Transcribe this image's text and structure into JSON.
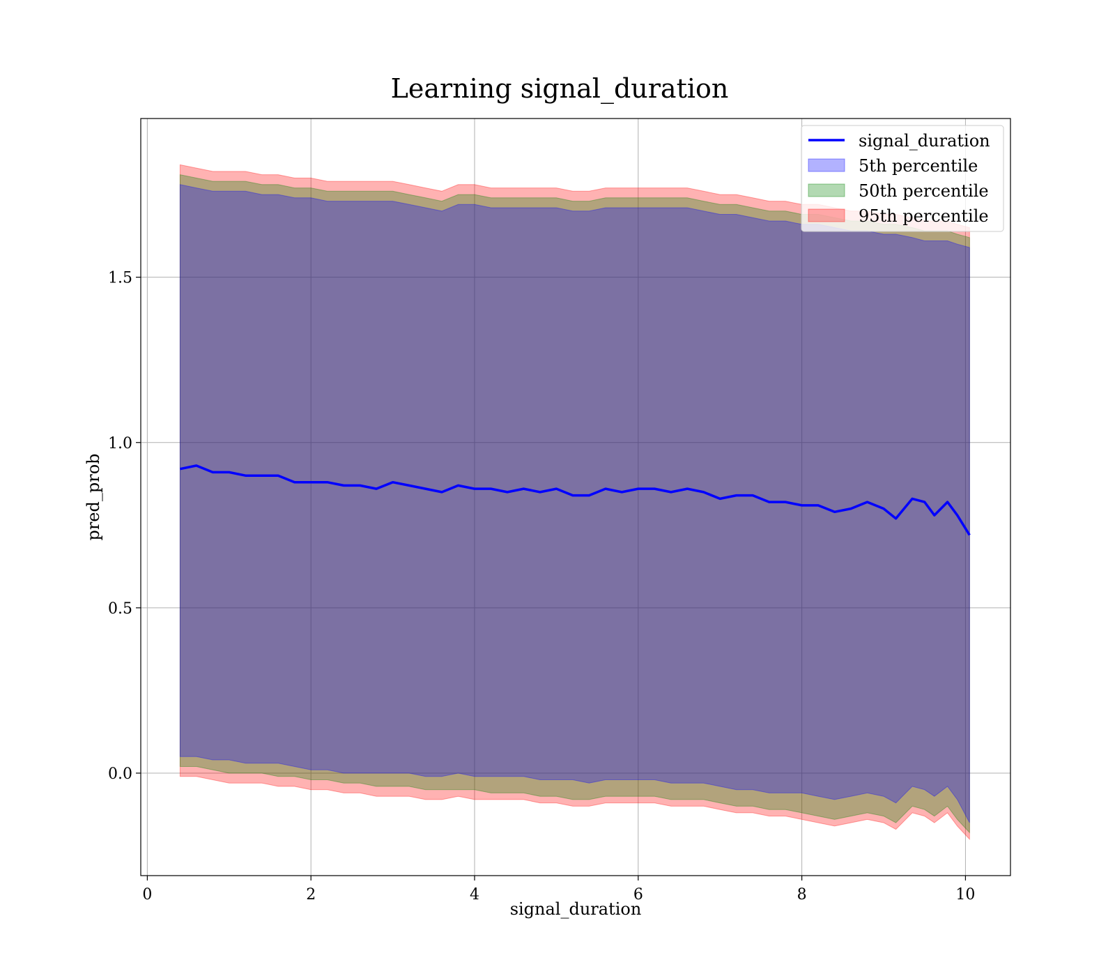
{
  "chart_data": {
    "type": "area",
    "title": "Learning signal_duration",
    "xlabel": "signal_duration",
    "ylabel": "pred_prob",
    "xlim": [
      -0.08,
      10.55
    ],
    "ylim": [
      -0.31,
      1.98
    ],
    "xticks": [
      0,
      2,
      4,
      6,
      8,
      10
    ],
    "xtick_labels": [
      "0",
      "2",
      "4",
      "6",
      "8",
      "10"
    ],
    "yticks": [
      0.0,
      0.5,
      1.0,
      1.5
    ],
    "ytick_labels": [
      "0.0",
      "0.5",
      "1.0",
      "1.5"
    ],
    "grid": true,
    "legend_position": "top-right",
    "colors": {
      "line": "#0000ff",
      "band_5th": "#0000ff",
      "band_50th": "#008000",
      "band_95th": "#ff0000"
    },
    "x": [
      0.4,
      0.6,
      0.8,
      1.0,
      1.2,
      1.4,
      1.6,
      1.8,
      2.0,
      2.2,
      2.4,
      2.6,
      2.8,
      3.0,
      3.2,
      3.4,
      3.6,
      3.8,
      4.0,
      4.2,
      4.4,
      4.6,
      4.8,
      5.0,
      5.2,
      5.4,
      5.6,
      5.8,
      6.0,
      6.2,
      6.4,
      6.6,
      6.8,
      7.0,
      7.2,
      7.4,
      7.6,
      7.8,
      8.0,
      8.2,
      8.4,
      8.6,
      8.8,
      9.0,
      9.15,
      9.35,
      9.5,
      9.62,
      9.78,
      9.9,
      10.05
    ],
    "series": [
      {
        "name": "signal_duration",
        "kind": "line",
        "values": [
          0.92,
          0.93,
          0.91,
          0.91,
          0.9,
          0.9,
          0.9,
          0.88,
          0.88,
          0.88,
          0.87,
          0.87,
          0.86,
          0.88,
          0.87,
          0.86,
          0.85,
          0.87,
          0.86,
          0.86,
          0.85,
          0.86,
          0.85,
          0.86,
          0.84,
          0.84,
          0.86,
          0.85,
          0.86,
          0.86,
          0.85,
          0.86,
          0.85,
          0.83,
          0.84,
          0.84,
          0.82,
          0.82,
          0.81,
          0.81,
          0.79,
          0.8,
          0.82,
          0.8,
          0.77,
          0.83,
          0.82,
          0.78,
          0.82,
          0.78,
          0.72
        ]
      },
      {
        "name": "5th percentile",
        "kind": "band",
        "lower": [
          0.05,
          0.05,
          0.04,
          0.04,
          0.03,
          0.03,
          0.03,
          0.02,
          0.01,
          0.01,
          0.0,
          0.0,
          0.0,
          0.0,
          0.0,
          -0.01,
          -0.01,
          0.0,
          -0.01,
          -0.01,
          -0.01,
          -0.01,
          -0.02,
          -0.02,
          -0.02,
          -0.03,
          -0.02,
          -0.02,
          -0.02,
          -0.02,
          -0.03,
          -0.03,
          -0.03,
          -0.04,
          -0.05,
          -0.05,
          -0.06,
          -0.06,
          -0.06,
          -0.07,
          -0.08,
          -0.07,
          -0.06,
          -0.07,
          -0.09,
          -0.04,
          -0.05,
          -0.07,
          -0.04,
          -0.08,
          -0.15
        ],
        "upper": [
          1.78,
          1.77,
          1.76,
          1.76,
          1.76,
          1.75,
          1.75,
          1.74,
          1.74,
          1.73,
          1.73,
          1.73,
          1.73,
          1.73,
          1.72,
          1.71,
          1.7,
          1.72,
          1.72,
          1.71,
          1.71,
          1.71,
          1.71,
          1.71,
          1.7,
          1.7,
          1.71,
          1.71,
          1.71,
          1.71,
          1.71,
          1.71,
          1.7,
          1.69,
          1.69,
          1.68,
          1.67,
          1.67,
          1.66,
          1.66,
          1.65,
          1.64,
          1.64,
          1.63,
          1.63,
          1.62,
          1.61,
          1.61,
          1.61,
          1.6,
          1.59
        ]
      },
      {
        "name": "50th percentile",
        "kind": "band",
        "lower": [
          0.02,
          0.02,
          0.01,
          0.0,
          0.0,
          0.0,
          -0.01,
          -0.01,
          -0.02,
          -0.02,
          -0.03,
          -0.03,
          -0.04,
          -0.04,
          -0.04,
          -0.05,
          -0.05,
          -0.05,
          -0.05,
          -0.06,
          -0.06,
          -0.06,
          -0.07,
          -0.07,
          -0.08,
          -0.08,
          -0.07,
          -0.07,
          -0.07,
          -0.07,
          -0.08,
          -0.08,
          -0.08,
          -0.09,
          -0.1,
          -0.1,
          -0.11,
          -0.11,
          -0.12,
          -0.13,
          -0.14,
          -0.13,
          -0.12,
          -0.13,
          -0.15,
          -0.1,
          -0.11,
          -0.13,
          -0.1,
          -0.14,
          -0.18
        ],
        "upper": [
          1.81,
          1.8,
          1.79,
          1.79,
          1.79,
          1.78,
          1.78,
          1.77,
          1.77,
          1.76,
          1.76,
          1.76,
          1.76,
          1.76,
          1.75,
          1.74,
          1.73,
          1.75,
          1.75,
          1.74,
          1.74,
          1.74,
          1.74,
          1.74,
          1.73,
          1.73,
          1.74,
          1.74,
          1.74,
          1.74,
          1.74,
          1.74,
          1.73,
          1.72,
          1.72,
          1.71,
          1.7,
          1.7,
          1.69,
          1.69,
          1.68,
          1.67,
          1.67,
          1.66,
          1.66,
          1.65,
          1.64,
          1.64,
          1.64,
          1.63,
          1.62
        ]
      },
      {
        "name": "95th percentile",
        "kind": "band",
        "lower": [
          -0.01,
          -0.01,
          -0.02,
          -0.03,
          -0.03,
          -0.03,
          -0.04,
          -0.04,
          -0.05,
          -0.05,
          -0.06,
          -0.06,
          -0.07,
          -0.07,
          -0.07,
          -0.08,
          -0.08,
          -0.07,
          -0.08,
          -0.08,
          -0.08,
          -0.08,
          -0.09,
          -0.09,
          -0.1,
          -0.1,
          -0.09,
          -0.09,
          -0.09,
          -0.09,
          -0.1,
          -0.1,
          -0.1,
          -0.11,
          -0.12,
          -0.12,
          -0.13,
          -0.13,
          -0.14,
          -0.15,
          -0.16,
          -0.15,
          -0.14,
          -0.15,
          -0.17,
          -0.12,
          -0.13,
          -0.15,
          -0.12,
          -0.16,
          -0.2
        ],
        "upper": [
          1.84,
          1.83,
          1.82,
          1.82,
          1.82,
          1.81,
          1.81,
          1.8,
          1.8,
          1.79,
          1.79,
          1.79,
          1.79,
          1.79,
          1.78,
          1.77,
          1.76,
          1.78,
          1.78,
          1.77,
          1.77,
          1.77,
          1.77,
          1.77,
          1.76,
          1.76,
          1.77,
          1.77,
          1.77,
          1.77,
          1.77,
          1.77,
          1.76,
          1.75,
          1.75,
          1.74,
          1.73,
          1.73,
          1.72,
          1.72,
          1.71,
          1.7,
          1.7,
          1.69,
          1.69,
          1.68,
          1.67,
          1.67,
          1.67,
          1.66,
          1.65
        ]
      }
    ]
  }
}
